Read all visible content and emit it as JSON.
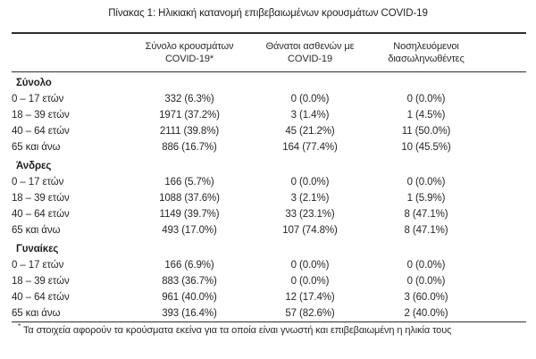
{
  "title": "Πίνακας 1: Ηλικιακή κατανομή επιβεβαιωμένων κρουσμάτων COVID-19",
  "table": {
    "headers": {
      "cases": {
        "line1": "Σύνολο κρουσμάτων",
        "line2": "COVID-19*"
      },
      "deaths": {
        "line1": "Θάνατοι ασθενών με",
        "line2": "COVID-19"
      },
      "intubated": {
        "line1": "Νοσηλευόμενοι",
        "line2": "διασωληνωθέντες"
      }
    },
    "sections": [
      {
        "label": "Σύνολο",
        "rows": [
          {
            "age": "0 – 17 ετών",
            "cases": "332 (6.3%)",
            "deaths": "0 (0.0%)",
            "intubated": "0 (0.0%)"
          },
          {
            "age": "18 – 39 ετών",
            "cases": "1971 (37.2%)",
            "deaths": "3 (1.4%)",
            "intubated": "1 (4.5%)"
          },
          {
            "age": "40 – 64 ετών",
            "cases": "2111 (39.8%)",
            "deaths": "45 (21.2%)",
            "intubated": "11 (50.0%)"
          },
          {
            "age": "65 και άνω",
            "cases": "886 (16.7%)",
            "deaths": "164 (77.4%)",
            "intubated": "10 (45.5%)"
          }
        ]
      },
      {
        "label": "Άνδρες",
        "rows": [
          {
            "age": "0 – 17 ετών",
            "cases": "166 (5.7%)",
            "deaths": "0 (0.0%)",
            "intubated": "0 (0.0%)"
          },
          {
            "age": "18 – 39 ετών",
            "cases": "1088 (37.6%)",
            "deaths": "3 (2.1%)",
            "intubated": "1 (5.9%)"
          },
          {
            "age": "40 – 64 ετών",
            "cases": "1149 (39.7%)",
            "deaths": "33 (23.1%)",
            "intubated": "8 (47.1%)"
          },
          {
            "age": "65 και άνω",
            "cases": "493 (17.0%)",
            "deaths": "107 (74.8%)",
            "intubated": "8 (47.1%)"
          }
        ]
      },
      {
        "label": "Γυναίκες",
        "rows": [
          {
            "age": "0 – 17 ετών",
            "cases": "166 (6.9%)",
            "deaths": "0 (0.0%)",
            "intubated": "0 (0.0%)"
          },
          {
            "age": "18 – 39 ετών",
            "cases": "883 (36.7%)",
            "deaths": "0 (0.0%)",
            "intubated": "0 (0.0%)"
          },
          {
            "age": "40 – 64 ετών",
            "cases": "961 (40.0%)",
            "deaths": "12 (17.4%)",
            "intubated": "3 (60.0%)"
          },
          {
            "age": "65 και άνω",
            "cases": "393 (16.4%)",
            "deaths": "57 (82.6%)",
            "intubated": "2 (40.0%)"
          }
        ]
      }
    ]
  },
  "footnote": {
    "marker": "*",
    "text": "Τα στοιχεία αφορούν τα κρούσματα εκείνα για τα οποία είναι γνωστή και επιβεβαιωμένη η ηλικία τους"
  }
}
